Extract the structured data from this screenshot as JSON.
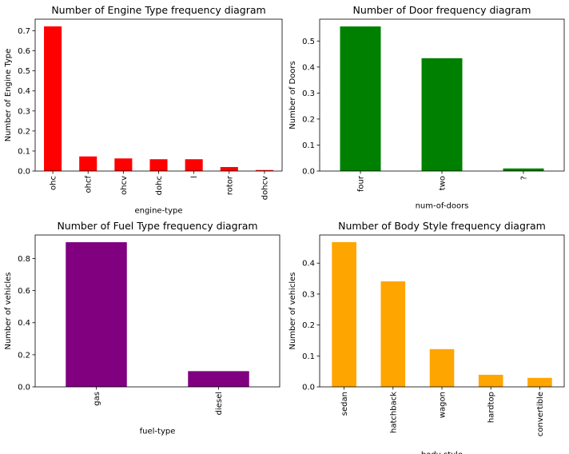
{
  "chart_data": [
    {
      "type": "bar",
      "title": "Number of Engine Type frequency diagram",
      "xlabel": "engine-type",
      "ylabel": "Number of Engine Type",
      "categories": [
        "ohc",
        "ohcf",
        "ohcv",
        "dohc",
        "l",
        "rotor",
        "dohcv"
      ],
      "values": [
        0.722,
        0.073,
        0.063,
        0.059,
        0.059,
        0.02,
        0.005
      ],
      "ylim": [
        0,
        0.758
      ],
      "yticks": [
        0.0,
        0.1,
        0.2,
        0.3,
        0.4,
        0.5,
        0.6,
        0.7
      ],
      "ytick_labels": [
        "0.0",
        "0.1",
        "0.2",
        "0.3",
        "0.4",
        "0.5",
        "0.6",
        "0.7"
      ],
      "color": "#ff0000",
      "grid": false
    },
    {
      "type": "bar",
      "title": "Number of Door frequency diagram",
      "xlabel": "num-of-doors",
      "ylabel": "Number of Doors",
      "categories": [
        "four",
        "two",
        "?"
      ],
      "values": [
        0.556,
        0.434,
        0.01
      ],
      "ylim": [
        0,
        0.584
      ],
      "yticks": [
        0.0,
        0.1,
        0.2,
        0.3,
        0.4,
        0.5
      ],
      "ytick_labels": [
        "0.0",
        "0.1",
        "0.2",
        "0.3",
        "0.4",
        "0.5"
      ],
      "color": "#008000",
      "grid": false
    },
    {
      "type": "bar",
      "title": "Number of Fuel Type frequency diagram",
      "xlabel": "fuel-type",
      "ylabel": "Number of vehicles",
      "categories": [
        "gas",
        "diesel"
      ],
      "values": [
        0.902,
        0.098
      ],
      "ylim": [
        0,
        0.947
      ],
      "yticks": [
        0.0,
        0.2,
        0.4,
        0.6,
        0.8
      ],
      "ytick_labels": [
        "0.0",
        "0.2",
        "0.4",
        "0.6",
        "0.8"
      ],
      "color": "#800080",
      "grid": false
    },
    {
      "type": "bar",
      "title": "Number of Body Style frequency diagram",
      "xlabel": "body-style",
      "ylabel": "Number of vehicles",
      "categories": [
        "sedan",
        "hatchback",
        "wagon",
        "hardtop",
        "convertible"
      ],
      "values": [
        0.468,
        0.341,
        0.122,
        0.039,
        0.029
      ],
      "ylim": [
        0,
        0.491
      ],
      "yticks": [
        0.0,
        0.1,
        0.2,
        0.3,
        0.4
      ],
      "ytick_labels": [
        "0.0",
        "0.1",
        "0.2",
        "0.3",
        "0.4"
      ],
      "color": "#ffa500",
      "grid": false
    }
  ]
}
